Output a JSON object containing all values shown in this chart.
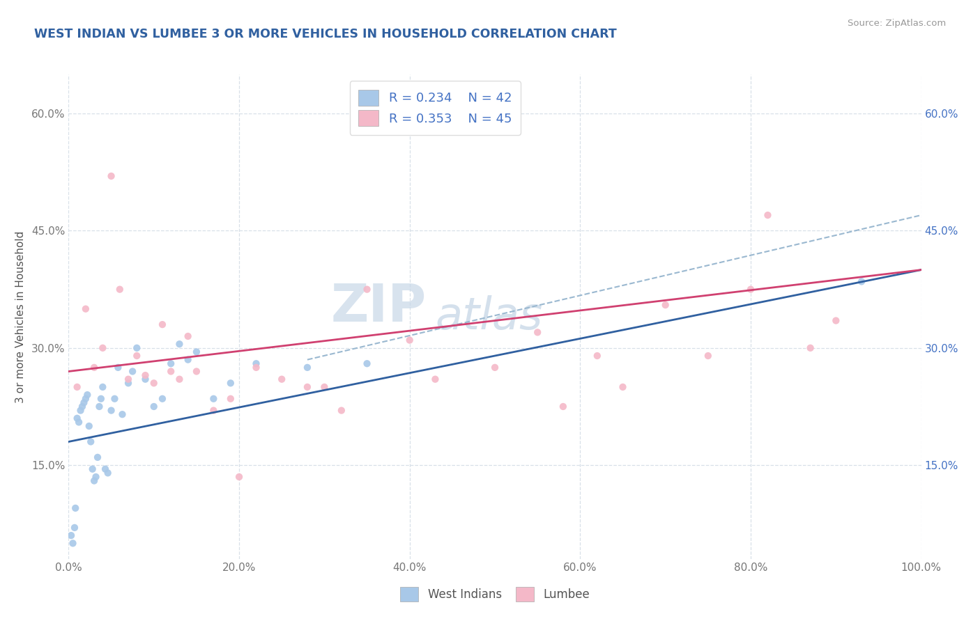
{
  "title": "WEST INDIAN VS LUMBEE 3 OR MORE VEHICLES IN HOUSEHOLD CORRELATION CHART",
  "source_text": "Source: ZipAtlas.com",
  "ylabel": "3 or more Vehicles in Household",
  "xlim": [
    0,
    100
  ],
  "ylim": [
    3,
    65
  ],
  "xtick_labels": [
    "0.0%",
    "20.0%",
    "40.0%",
    "60.0%",
    "80.0%",
    "100.0%"
  ],
  "xtick_vals": [
    0,
    20,
    40,
    60,
    80,
    100
  ],
  "ytick_labels": [
    "15.0%",
    "30.0%",
    "45.0%",
    "60.0%"
  ],
  "ytick_vals": [
    15,
    30,
    45,
    60
  ],
  "watermark_line1": "ZIP",
  "watermark_line2": "atlas",
  "blue_scatter_color": "#a8c8e8",
  "pink_scatter_color": "#f4b8c8",
  "blue_line_color": "#3060a0",
  "pink_line_color": "#d04070",
  "dash_line_color": "#9ab8d0",
  "title_color": "#3060a0",
  "right_tick_color": "#4472c4",
  "grid_color": "#d8e0e8",
  "west_indians_x": [
    0.3,
    0.5,
    0.7,
    0.8,
    1.0,
    1.2,
    1.4,
    1.6,
    1.8,
    2.0,
    2.2,
    2.4,
    2.6,
    2.8,
    3.0,
    3.2,
    3.4,
    3.6,
    3.8,
    4.0,
    4.3,
    4.6,
    5.0,
    5.4,
    5.8,
    6.3,
    7.0,
    7.5,
    8.0,
    9.0,
    10.0,
    11.0,
    12.0,
    13.0,
    14.0,
    15.0,
    17.0,
    19.0,
    22.0,
    28.0,
    35.0,
    93.0
  ],
  "west_indians_y": [
    6.0,
    5.0,
    7.0,
    9.5,
    21.0,
    20.5,
    22.0,
    22.5,
    23.0,
    23.5,
    24.0,
    20.0,
    18.0,
    14.5,
    13.0,
    13.5,
    16.0,
    22.5,
    23.5,
    25.0,
    14.5,
    14.0,
    22.0,
    23.5,
    27.5,
    21.5,
    25.5,
    27.0,
    30.0,
    26.0,
    22.5,
    23.5,
    28.0,
    30.5,
    28.5,
    29.5,
    23.5,
    25.5,
    28.0,
    27.5,
    28.0,
    38.5
  ],
  "lumbee_x": [
    1.0,
    2.0,
    3.0,
    4.0,
    5.0,
    6.0,
    7.0,
    8.0,
    9.0,
    10.0,
    11.0,
    12.0,
    13.0,
    14.0,
    15.0,
    17.0,
    19.0,
    20.0,
    22.0,
    25.0,
    28.0,
    30.0,
    32.0,
    35.0,
    40.0,
    43.0,
    50.0,
    55.0,
    58.0,
    62.0,
    65.0,
    70.0,
    75.0,
    80.0,
    82.0,
    87.0,
    90.0
  ],
  "lumbee_y": [
    25.0,
    35.0,
    27.5,
    30.0,
    52.0,
    37.5,
    26.0,
    29.0,
    26.5,
    25.5,
    33.0,
    27.0,
    26.0,
    31.5,
    27.0,
    22.0,
    23.5,
    13.5,
    27.5,
    26.0,
    25.0,
    25.0,
    22.0,
    37.5,
    31.0,
    26.0,
    27.5,
    32.0,
    22.5,
    29.0,
    25.0,
    35.5,
    29.0,
    37.5,
    47.0,
    30.0,
    33.5
  ],
  "blue_line_start_y": 18.0,
  "blue_line_end_y": 40.0,
  "pink_line_start_y": 27.0,
  "pink_line_end_y": 40.0,
  "dash_line_start_x": 28.0,
  "dash_line_start_y": 28.5,
  "dash_line_end_x": 100.0,
  "dash_line_end_y": 47.0
}
